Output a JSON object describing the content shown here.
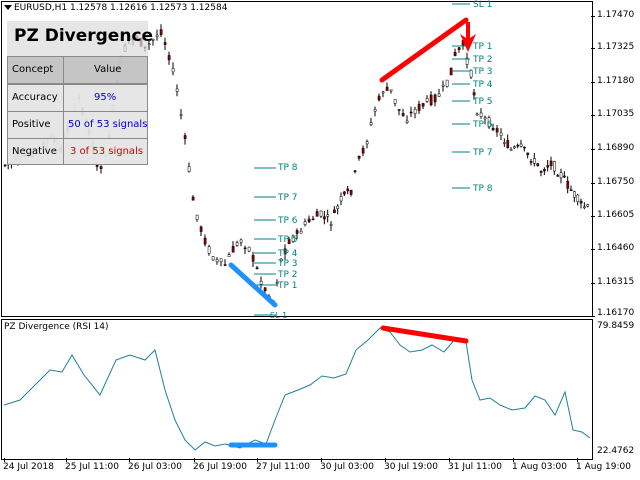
{
  "chart_header": {
    "symbol_info": "EURUSD,H1  1.12578 1.12616 1.12573 1.12584"
  },
  "oscillator": {
    "title": "PZ Divergence (RSI 14)",
    "max_label": "79.8459",
    "min_label": "22.4762"
  },
  "price_axis": [
    "1.17470",
    "1.17325",
    "1.17180",
    "1.17035",
    "1.16890",
    "1.16750",
    "1.16605",
    "1.16460",
    "1.16315",
    "1.16170"
  ],
  "time_axis": [
    "24 Jul 2018",
    "25 Jul 11:00",
    "26 Jul 03:00",
    "26 Jul 19:00",
    "27 Jul 11:00",
    "30 Jul 03:00",
    "30 Jul 19:00",
    "31 Jul 11:00",
    "1 Aug 03:00",
    "1 Aug 19:00"
  ],
  "info_panel": {
    "title": "PZ Divergence",
    "header": [
      "Concept",
      "Value"
    ],
    "rows": [
      {
        "concept": "Accuracy",
        "value": "95%"
      },
      {
        "concept": "Positive",
        "value": "50 of 53 signals"
      },
      {
        "concept": "Negative",
        "value": "3 of 53 signals"
      }
    ]
  },
  "trade_levels": {
    "sell": [
      "SL 1",
      "TP 1",
      "TP 2",
      "TP 3",
      "TP 4",
      "TP 5",
      "TP 6",
      "TP 7",
      "TP 8"
    ],
    "buy": [
      "SL 1",
      "TP 1",
      "TP 2",
      "TP 3",
      "TP 4",
      "TP 5",
      "TP 6",
      "TP 7",
      "TP 8"
    ]
  },
  "colors": {
    "bull_candle": "#ffffff",
    "bear_candle": "#8b0000",
    "wick": "#000000",
    "bearish_divergence": "#ff0000",
    "bullish_divergence": "#1e90ff",
    "rsi_line": "#1f7f9f",
    "level_lines": "#008080",
    "positive_text": "#0000cc",
    "negative_text": "#cc0000"
  },
  "chart_data": {
    "type": "candlestick",
    "symbol": "EURUSD",
    "timeframe": "H1",
    "ylim": [
      1.1617,
      1.1747
    ],
    "indicator": {
      "name": "PZ Divergence (RSI 14)",
      "ylim": [
        22.4762,
        79.8459
      ]
    }
  }
}
